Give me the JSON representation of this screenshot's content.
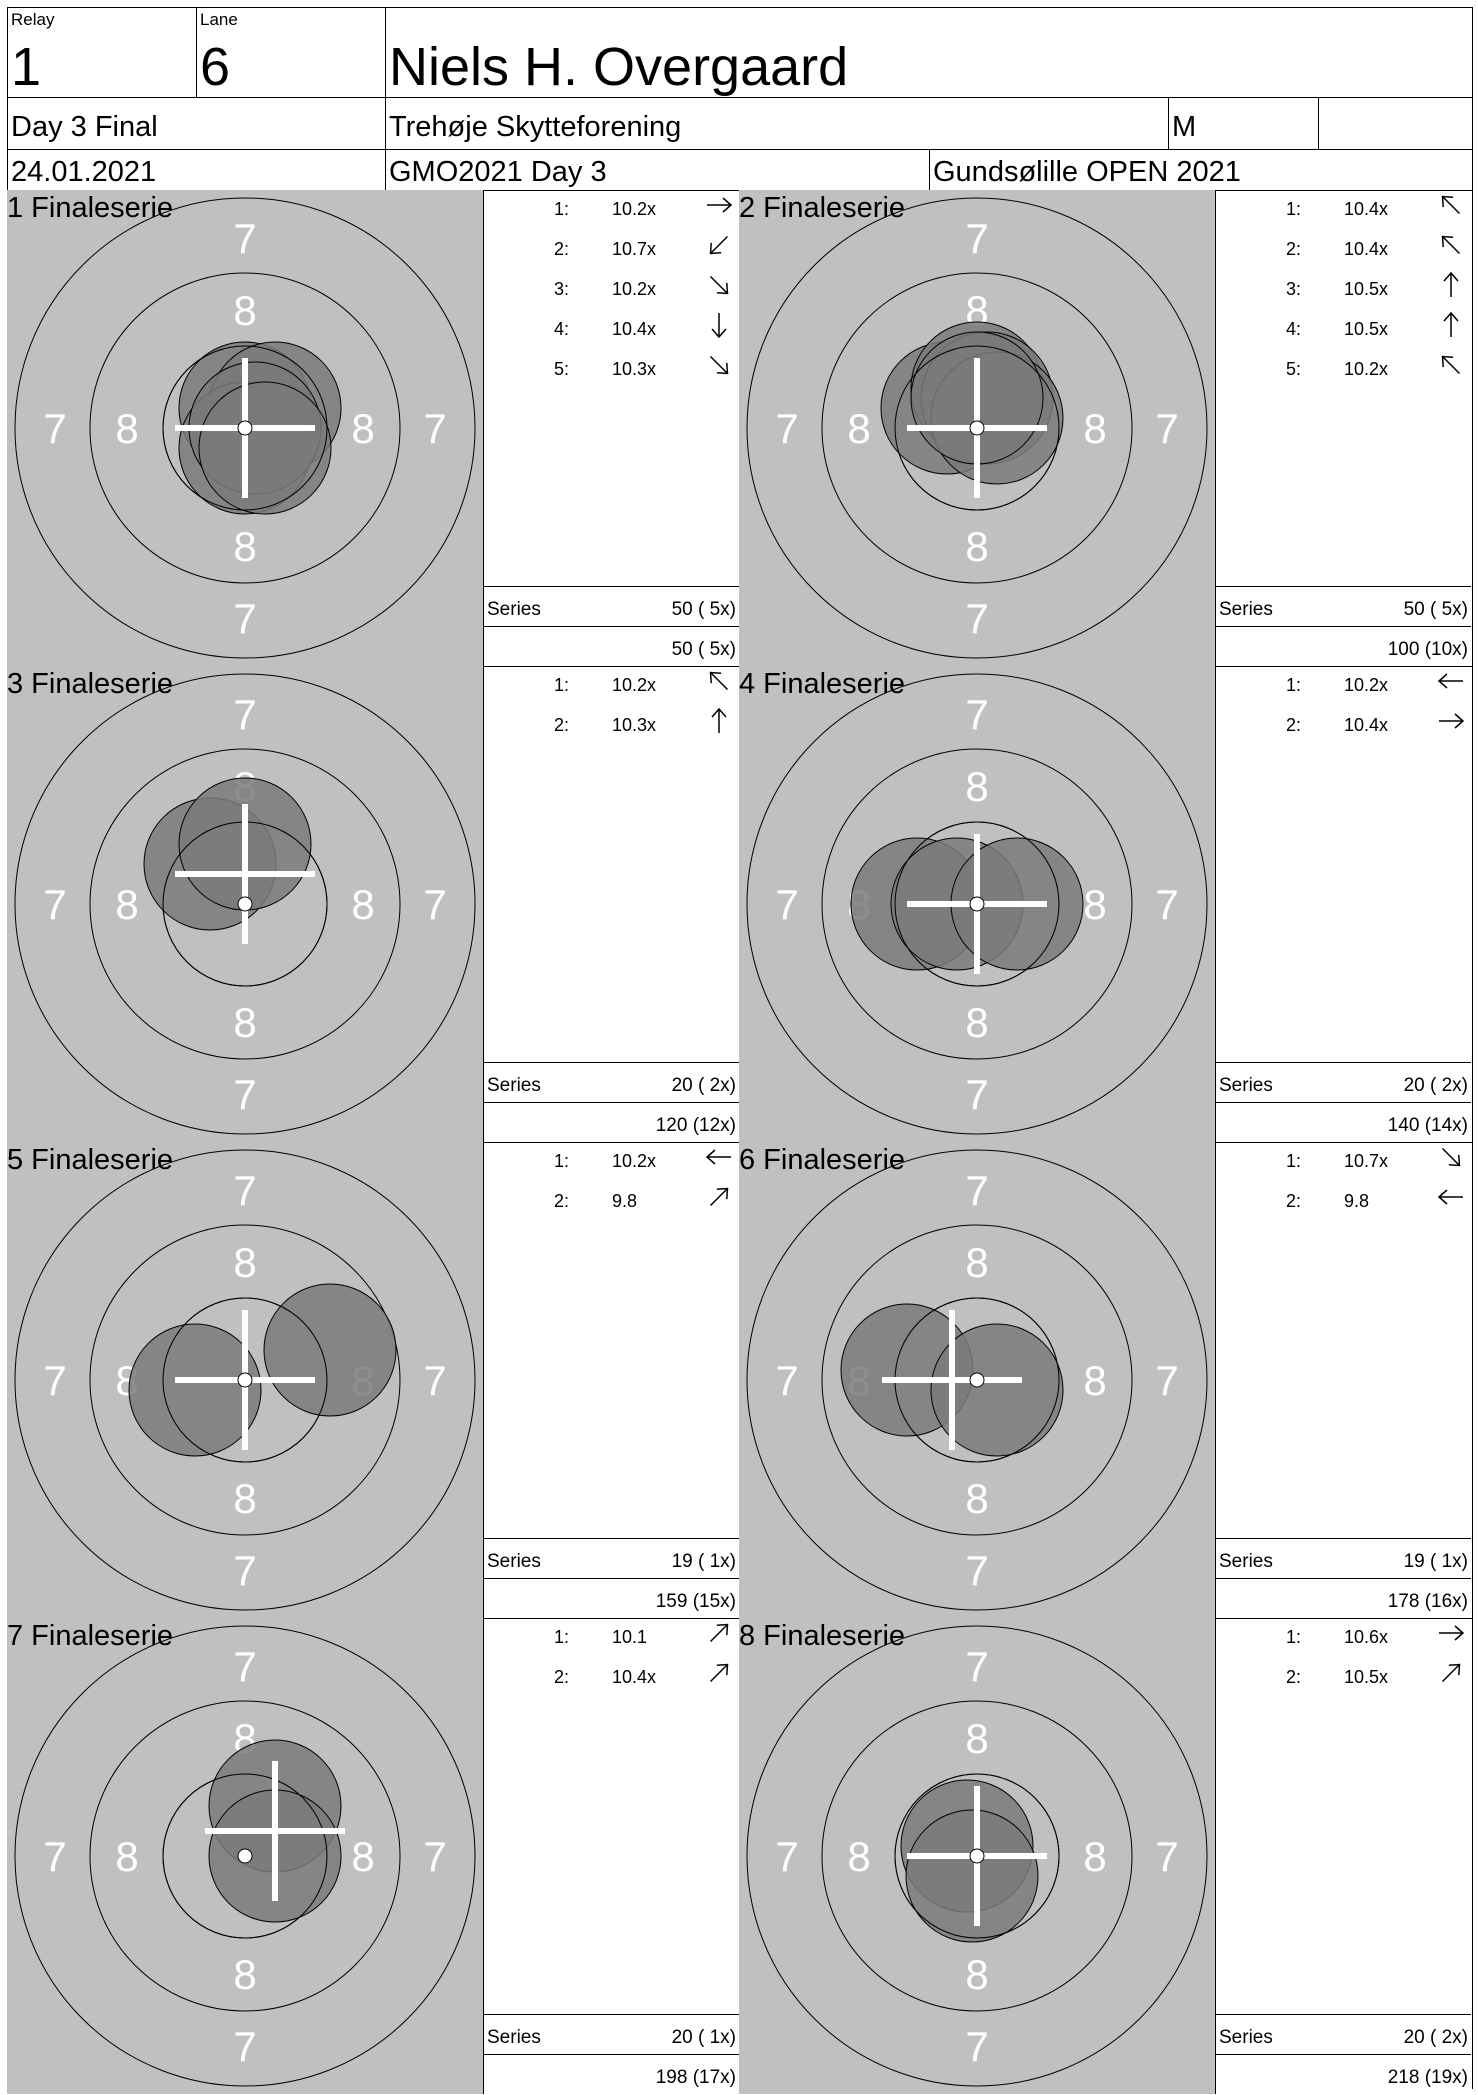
{
  "header": {
    "relay_label": "Relay",
    "relay": "1",
    "lane_label": "Lane",
    "lane": "6",
    "shooter_name": "Niels H. Overgaard",
    "event": "Day 3 Final",
    "club": "Trehøje Skytteforening",
    "class": "M",
    "date": "24.01.2021",
    "match": "GMO2021 Day 3",
    "competition": "Gundsølille OPEN 2021"
  },
  "series_label": "Series",
  "panels": [
    {
      "title": "1 Finaleserie",
      "shots": [
        {
          "num": "1:",
          "value": "10.2x",
          "arrow": "right"
        },
        {
          "num": "2:",
          "value": "10.7x",
          "arrow": "down-left"
        },
        {
          "num": "3:",
          "value": "10.2x",
          "arrow": "down-right"
        },
        {
          "num": "4:",
          "value": "10.4x",
          "arrow": "down"
        },
        {
          "num": "5:",
          "value": "10.3x",
          "arrow": "down-right"
        }
      ],
      "series": "50 ( 5x)",
      "total": "50 ( 5x)"
    },
    {
      "title": "2 Finaleserie",
      "shots": [
        {
          "num": "1:",
          "value": "10.4x",
          "arrow": "up-left"
        },
        {
          "num": "2:",
          "value": "10.4x",
          "arrow": "up-left"
        },
        {
          "num": "3:",
          "value": "10.5x",
          "arrow": "up"
        },
        {
          "num": "4:",
          "value": "10.5x",
          "arrow": "up"
        },
        {
          "num": "5:",
          "value": "10.2x",
          "arrow": "up-left"
        }
      ],
      "series": "50 ( 5x)",
      "total": "100 (10x)"
    },
    {
      "title": "3 Finaleserie",
      "shots": [
        {
          "num": "1:",
          "value": "10.2x",
          "arrow": "up-left"
        },
        {
          "num": "2:",
          "value": "10.3x",
          "arrow": "up"
        }
      ],
      "series": "20 ( 2x)",
      "total": "120 (12x)"
    },
    {
      "title": "4 Finaleserie",
      "shots": [
        {
          "num": "1:",
          "value": "10.2x",
          "arrow": "left"
        },
        {
          "num": "2:",
          "value": "10.4x",
          "arrow": "right"
        }
      ],
      "series": "20 ( 2x)",
      "total": "140 (14x)"
    },
    {
      "title": "5 Finaleserie",
      "shots": [
        {
          "num": "1:",
          "value": "10.2x",
          "arrow": "left"
        },
        {
          "num": "2:",
          "value": "9.8",
          "arrow": "up-right"
        }
      ],
      "series": "19 ( 1x)",
      "total": "159 (15x)"
    },
    {
      "title": "6 Finaleserie",
      "shots": [
        {
          "num": "1:",
          "value": "10.7x",
          "arrow": "down-right"
        },
        {
          "num": "2:",
          "value": "9.8",
          "arrow": "left"
        }
      ],
      "series": "19 ( 1x)",
      "total": "178 (16x)"
    },
    {
      "title": "7 Finaleserie",
      "shots": [
        {
          "num": "1:",
          "value": "10.1",
          "arrow": "up-right"
        },
        {
          "num": "2:",
          "value": "10.4x",
          "arrow": "up-right"
        }
      ],
      "series": "20 ( 1x)",
      "total": "198 (17x)"
    },
    {
      "title": "8 Finaleserie",
      "shots": [
        {
          "num": "1:",
          "value": "10.6x",
          "arrow": "right"
        },
        {
          "num": "2:",
          "value": "10.5x",
          "arrow": "up-right"
        }
      ],
      "series": "20 ( 2x)",
      "total": "218 (19x)"
    }
  ],
  "ring_labels": {
    "outer": "7",
    "inner": "8"
  },
  "colors": {
    "target_bg": "#c0c0c0",
    "shot_fill": "#7a7a7a",
    "crosshair": "#ffffff",
    "line": "#000000"
  }
}
